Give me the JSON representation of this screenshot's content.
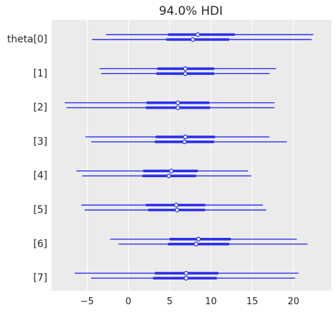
{
  "chart_data": {
    "type": "forest",
    "title": "94.0% HDI",
    "xlim": [
      -9.3,
      24.6
    ],
    "xticks": [
      -5,
      0,
      5,
      10,
      15,
      20
    ],
    "xtick_labels": [
      "−5",
      "0",
      "5",
      "10",
      "15",
      "20"
    ],
    "grid": true,
    "background_color": "#ebebeb",
    "series_color": "#2a2eec",
    "rows": [
      {
        "label": "theta[0]",
        "chains": [
          {
            "hdi_low": -2.7,
            "iqr_low": 4.8,
            "median": 8.4,
            "iqr_high": 12.9,
            "hdi_high": 22.4
          },
          {
            "hdi_low": -4.4,
            "iqr_low": 4.6,
            "median": 7.8,
            "iqr_high": 12.2,
            "hdi_high": 22.2
          }
        ]
      },
      {
        "label": "[1]",
        "chains": [
          {
            "hdi_low": -3.5,
            "iqr_low": 3.5,
            "median": 6.9,
            "iqr_high": 10.4,
            "hdi_high": 17.9
          },
          {
            "hdi_low": -3.3,
            "iqr_low": 3.4,
            "median": 6.9,
            "iqr_high": 10.4,
            "hdi_high": 17.1
          }
        ]
      },
      {
        "label": "[2]",
        "chains": [
          {
            "hdi_low": -7.7,
            "iqr_low": 2.2,
            "median": 6.0,
            "iqr_high": 9.8,
            "hdi_high": 17.7
          },
          {
            "hdi_low": -7.5,
            "iqr_low": 2.1,
            "median": 6.0,
            "iqr_high": 9.9,
            "hdi_high": 17.7
          }
        ]
      },
      {
        "label": "[3]",
        "chains": [
          {
            "hdi_low": -5.2,
            "iqr_low": 3.3,
            "median": 6.9,
            "iqr_high": 10.5,
            "hdi_high": 17.1
          },
          {
            "hdi_low": -4.5,
            "iqr_low": 3.2,
            "median": 6.8,
            "iqr_high": 10.4,
            "hdi_high": 19.2
          }
        ]
      },
      {
        "label": "[4]",
        "chains": [
          {
            "hdi_low": -6.3,
            "iqr_low": 1.8,
            "median": 5.2,
            "iqr_high": 8.4,
            "hdi_high": 14.5
          },
          {
            "hdi_low": -5.6,
            "iqr_low": 1.7,
            "median": 4.9,
            "iqr_high": 8.2,
            "hdi_high": 14.9
          }
        ]
      },
      {
        "label": "[5]",
        "chains": [
          {
            "hdi_low": -5.7,
            "iqr_low": 2.1,
            "median": 5.8,
            "iqr_high": 9.3,
            "hdi_high": 16.3
          },
          {
            "hdi_low": -5.3,
            "iqr_low": 2.4,
            "median": 5.9,
            "iqr_high": 9.3,
            "hdi_high": 16.7
          }
        ]
      },
      {
        "label": "[6]",
        "chains": [
          {
            "hdi_low": -2.2,
            "iqr_low": 5.0,
            "median": 8.5,
            "iqr_high": 12.4,
            "hdi_high": 20.4
          },
          {
            "hdi_low": -1.2,
            "iqr_low": 4.8,
            "median": 8.2,
            "iqr_high": 12.2,
            "hdi_high": 21.7
          }
        ]
      },
      {
        "label": "[7]",
        "chains": [
          {
            "hdi_low": -6.5,
            "iqr_low": 3.2,
            "median": 7.0,
            "iqr_high": 10.9,
            "hdi_high": 20.6
          },
          {
            "hdi_low": -4.5,
            "iqr_low": 3.0,
            "median": 7.0,
            "iqr_high": 10.7,
            "hdi_high": 20.2
          }
        ]
      }
    ]
  }
}
